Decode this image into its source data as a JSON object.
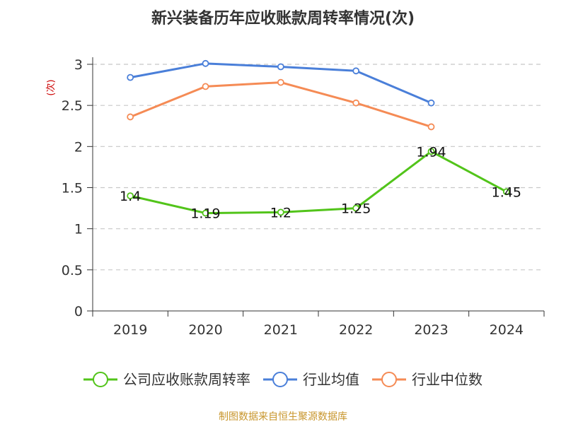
{
  "chart_data": {
    "type": "line",
    "title": "新兴装备历年应收账款周转率情况(次)",
    "ylabel": "(次)",
    "xlabel": "",
    "categories": [
      "2019",
      "2020",
      "2021",
      "2022",
      "2023",
      "2024"
    ],
    "ylim": [
      0,
      3
    ],
    "yticks": [
      "0",
      "0.5",
      "1",
      "1.5",
      "2",
      "2.5",
      "3"
    ],
    "grid": true,
    "legend_position": "bottom",
    "series": [
      {
        "name": "公司应收账款周转率",
        "color": "#52c41a",
        "values": [
          1.4,
          1.19,
          1.2,
          1.25,
          1.94,
          1.45
        ],
        "labels": [
          "1.4",
          "1.19",
          "1.2",
          "1.25",
          "1.94",
          "1.45"
        ]
      },
      {
        "name": "行业均值",
        "color": "#4a7fd9",
        "values": [
          2.84,
          3.01,
          2.97,
          2.92,
          2.53,
          null
        ]
      },
      {
        "name": "行业中位数",
        "color": "#f58b55",
        "values": [
          2.36,
          2.73,
          2.78,
          2.53,
          2.24,
          null
        ]
      }
    ]
  },
  "colors": {
    "ylabel": "#cc0000",
    "source": "#c8962d",
    "grid": "#c8c8c8",
    "axis": "#333333"
  },
  "source_text": "制图数据来自恒生聚源数据库"
}
